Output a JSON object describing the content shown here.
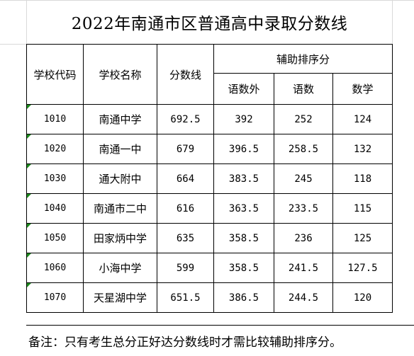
{
  "title": "2022年南通市区普通高中录取分数线",
  "headers": {
    "code": "学校代码",
    "name": "学校名称",
    "score": "分数线",
    "aux_group": "辅助排序分",
    "aux": [
      "语数外",
      "语数",
      "数学"
    ]
  },
  "rows": [
    {
      "code": "1010",
      "name": "南通中学",
      "score": "692.5",
      "a1": "392",
      "a2": "252",
      "a3": "124"
    },
    {
      "code": "1020",
      "name": "南通一中",
      "score": "679",
      "a1": "396.5",
      "a2": "258.5",
      "a3": "132"
    },
    {
      "code": "1030",
      "name": "通大附中",
      "score": "664",
      "a1": "383.5",
      "a2": "245",
      "a3": "118"
    },
    {
      "code": "1040",
      "name": "南通市二中",
      "score": "616",
      "a1": "363.5",
      "a2": "233.5",
      "a3": "115"
    },
    {
      "code": "1050",
      "name": "田家炳中学",
      "score": "635",
      "a1": "358.5",
      "a2": "236",
      "a3": "125"
    },
    {
      "code": "1060",
      "name": "小海中学",
      "score": "599",
      "a1": "358.5",
      "a2": "241.5",
      "a3": "127.5"
    },
    {
      "code": "1070",
      "name": "天星湖中学",
      "score": "651.5",
      "a1": "386.5",
      "a2": "244.5",
      "a3": "120"
    }
  ],
  "note": "备注：只有考生总分正好达分数线时才需比较辅助排序分。",
  "colors": {
    "cell_marker": "#1e8b1e",
    "border": "#000000",
    "gridline": "#d9d9d9"
  }
}
